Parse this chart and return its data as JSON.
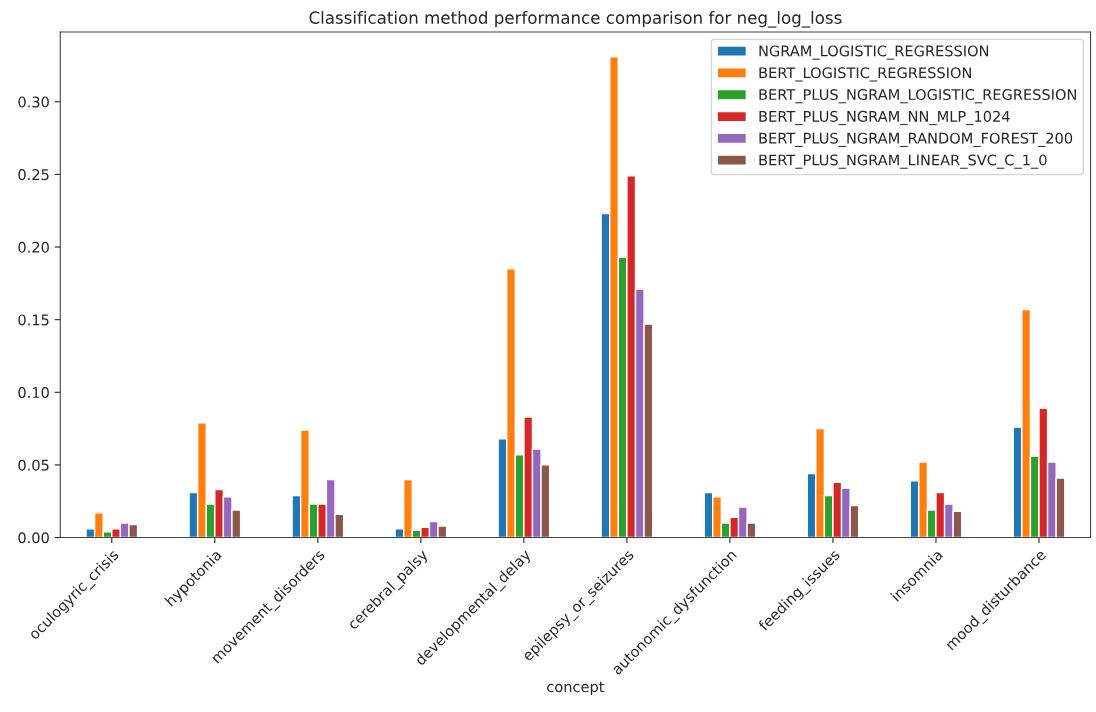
{
  "chart_data": {
    "type": "bar",
    "title": "Classification method performance comparison for neg_log_loss",
    "xlabel": "concept",
    "categories": [
      "oculogyric_crisis",
      "hypotonia",
      "movement_disorders",
      "cerebral_palsy",
      "developmental_delay",
      "epilepsy_or_seizures",
      "autonomic_dysfunction",
      "feeding_issues",
      "insomnia",
      "mood_disturbance"
    ],
    "series": [
      {
        "name": "NGRAM_LOGISTIC_REGRESSION",
        "color": "#1f77b4",
        "values": [
          0.006,
          0.031,
          0.029,
          0.006,
          0.068,
          0.223,
          0.031,
          0.044,
          0.039,
          0.076
        ]
      },
      {
        "name": "BERT_LOGISTIC_REGRESSION",
        "color": "#ff7f0e",
        "values": [
          0.017,
          0.079,
          0.074,
          0.04,
          0.185,
          0.331,
          0.028,
          0.075,
          0.052,
          0.157
        ]
      },
      {
        "name": "BERT_PLUS_NGRAM_LOGISTIC_REGRESSION",
        "color": "#2ca02c",
        "values": [
          0.004,
          0.023,
          0.023,
          0.005,
          0.057,
          0.193,
          0.01,
          0.029,
          0.019,
          0.056
        ]
      },
      {
        "name": "BERT_PLUS_NGRAM_NN_MLP_1024",
        "color": "#d62728",
        "values": [
          0.006,
          0.033,
          0.023,
          0.007,
          0.083,
          0.249,
          0.014,
          0.038,
          0.031,
          0.089
        ]
      },
      {
        "name": "BERT_PLUS_NGRAM_RANDOM_FOREST_200",
        "color": "#9467bd",
        "values": [
          0.01,
          0.028,
          0.04,
          0.011,
          0.061,
          0.171,
          0.021,
          0.034,
          0.023,
          0.052
        ]
      },
      {
        "name": "BERT_PLUS_NGRAM_LINEAR_SVC_C_1_0",
        "color": "#8c564b",
        "values": [
          0.009,
          0.019,
          0.016,
          0.008,
          0.05,
          0.147,
          0.01,
          0.022,
          0.018,
          0.041
        ]
      }
    ],
    "ylim": [
      0,
      0.348
    ],
    "yticks": [
      {
        "value": 0,
        "label": "0.00"
      },
      {
        "value": 0.05,
        "label": "0.05"
      },
      {
        "value": 0.1,
        "label": "0.10"
      },
      {
        "value": 0.15,
        "label": "0.15"
      },
      {
        "value": 0.2,
        "label": "0.20"
      },
      {
        "value": 0.25,
        "label": "0.25"
      },
      {
        "value": 0.3,
        "label": "0.30"
      }
    ],
    "legend": "top right",
    "grid": false
  }
}
